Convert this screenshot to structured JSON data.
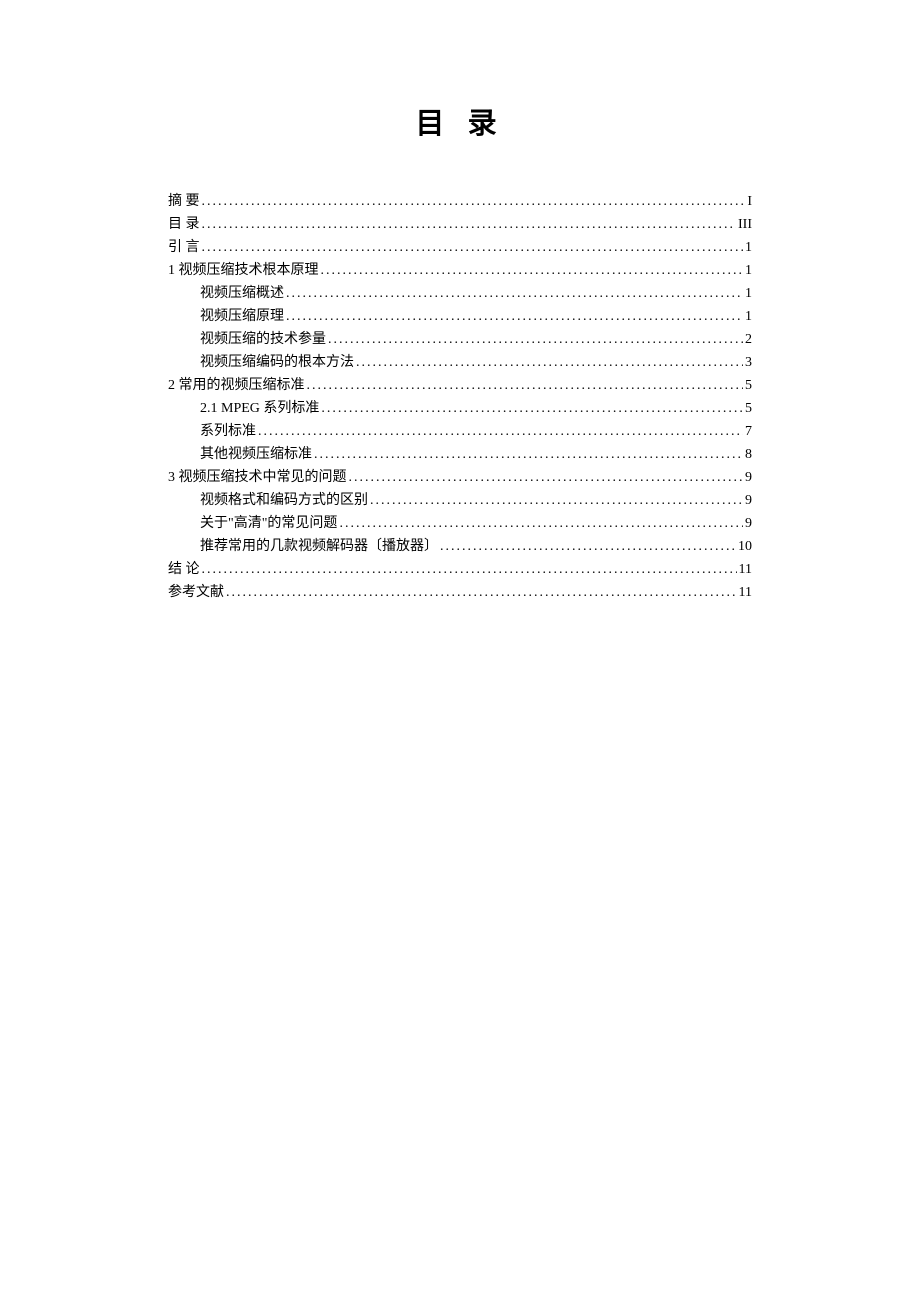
{
  "page_title": "目 录",
  "text_color": "#000000",
  "background_color": "#ffffff",
  "title_fontsize": 29,
  "body_fontsize": 14,
  "line_height": 23,
  "toc": [
    {
      "label": "摘 要",
      "page": "I",
      "indent": 0
    },
    {
      "label": "目 录",
      "page": "III",
      "indent": 0
    },
    {
      "label": "引 言",
      "page": "1",
      "indent": 0
    },
    {
      "label": "1 视频压缩技术根本原理",
      "page": "1",
      "indent": 0
    },
    {
      "label": "视频压缩概述",
      "page": "1",
      "indent": 1
    },
    {
      "label": "视频压缩原理",
      "page": "1",
      "indent": 1
    },
    {
      "label": "视频压缩的技术参量",
      "page": "2",
      "indent": 1
    },
    {
      "label": "视频压缩编码的根本方法",
      "page": "3",
      "indent": 1
    },
    {
      "label": "2 常用的视频压缩标准",
      "page": "5",
      "indent": 0
    },
    {
      "label": "2.1 MPEG 系列标准",
      "page": "5",
      "indent": 1
    },
    {
      "label": "系列标准",
      "page": "7",
      "indent": 1
    },
    {
      "label": "其他视频压缩标准",
      "page": "8",
      "indent": 1
    },
    {
      "label": "3 视频压缩技术中常见的问题",
      "page": "9",
      "indent": 0
    },
    {
      "label": "视频格式和编码方式的区别",
      "page": "9",
      "indent": 1
    },
    {
      "label": "关于\"高清\"的常见问题",
      "page": "9",
      "indent": 1
    },
    {
      "label": "推荐常用的几款视频解码器〔播放器〕",
      "page": "10",
      "indent": 1
    },
    {
      "label": "结 论",
      "page": "11",
      "indent": 0
    },
    {
      "label": "参考文献",
      "page": "11",
      "indent": 0
    }
  ]
}
